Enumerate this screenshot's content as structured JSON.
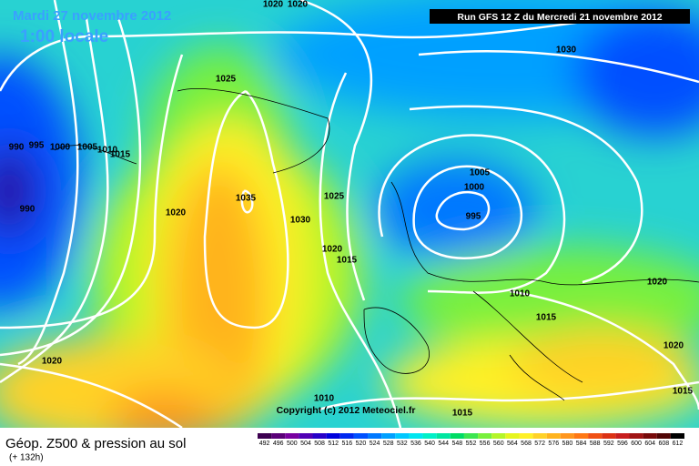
{
  "header": {
    "date": "Mardi 27 novembre 2012",
    "time": "1:00 locale",
    "run": "Run GFS 12 Z du Mercredi 21 novembre 2012"
  },
  "isobar_labels": [
    "1020",
    "1020",
    "1030",
    "1025",
    "990",
    "995",
    "1000",
    "1005",
    "1010",
    "1015",
    "990",
    "1020",
    "1035",
    "1025",
    "1030",
    "1005",
    "1000",
    "995",
    "1020",
    "1015",
    "1010",
    "1015",
    "1020",
    "1020",
    "1020",
    "1010",
    "1015",
    "1015"
  ],
  "copyright": "Copyright (c) 2012 Meteociel.fr",
  "legend": {
    "title": "Géop. Z500 & pression au sol",
    "lead": "(+ 132h)",
    "scale": [
      492,
      496,
      500,
      504,
      508,
      512,
      516,
      520,
      524,
      528,
      532,
      536,
      540,
      544,
      548,
      552,
      556,
      560,
      564,
      568,
      572,
      576,
      580,
      584,
      588,
      592,
      596,
      600,
      604,
      608,
      612
    ],
    "colors": [
      "#3c0050",
      "#5a0078",
      "#7800a0",
      "#5000b4",
      "#2800c8",
      "#0000dc",
      "#0028f0",
      "#0050ff",
      "#0078ff",
      "#00a0ff",
      "#00c8ff",
      "#00e6f0",
      "#00f0c8",
      "#00e6a0",
      "#00dc64",
      "#3ce650",
      "#78f03c",
      "#b4f528",
      "#e6f51e",
      "#fff028",
      "#ffd228",
      "#ffb41e",
      "#ff961e",
      "#ff7814",
      "#f05014",
      "#dc3214",
      "#c81e1e",
      "#a01414",
      "#780a0a",
      "#500505",
      "#000000"
    ]
  }
}
